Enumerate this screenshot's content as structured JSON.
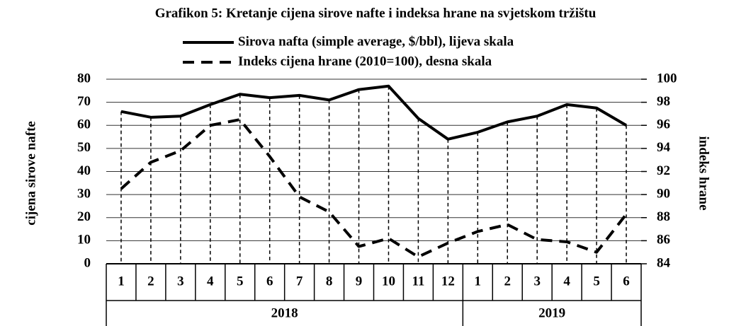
{
  "chart_data": {
    "type": "line",
    "title": "Grafikon 5: Kretanje cijena sirove nafte i indeksa hrane na svjetskom tržištu",
    "categories": [
      "1",
      "2",
      "3",
      "4",
      "5",
      "6",
      "7",
      "8",
      "9",
      "10",
      "11",
      "12",
      "1",
      "2",
      "3",
      "4",
      "5",
      "6"
    ],
    "groups": [
      "2018",
      "2019"
    ],
    "ylabel": "cijena sirove nafte",
    "y2label": "indeks hrane",
    "ylim": [
      0,
      80
    ],
    "yticks": [
      0,
      10,
      20,
      30,
      40,
      50,
      60,
      70,
      80
    ],
    "y2lim": [
      84,
      100
    ],
    "y2ticks": [
      84,
      86,
      88,
      90,
      92,
      94,
      96,
      98,
      100
    ],
    "grid": true,
    "series": [
      {
        "name": "Sirova nafta (simple average, $/bbl), lijeva skala",
        "color": "#000000",
        "style": "solid",
        "values": [
          66,
          63.5,
          64,
          69,
          73.5,
          72,
          73,
          71,
          75.5,
          77,
          63,
          54,
          57,
          61.5,
          64,
          69,
          67.5,
          60
        ]
      },
      {
        "name": "Indeks cijena hrane (2010=100), desna skala",
        "color": "#000000",
        "style": "dashed",
        "axis": "y2",
        "values": [
          90.5,
          92.8,
          93.8,
          96,
          96.5,
          93.3,
          89.8,
          88.5,
          85.5,
          86.2,
          84.6,
          85.8,
          86.8,
          87.4,
          86.1,
          85.9,
          85,
          88.3
        ]
      }
    ]
  }
}
